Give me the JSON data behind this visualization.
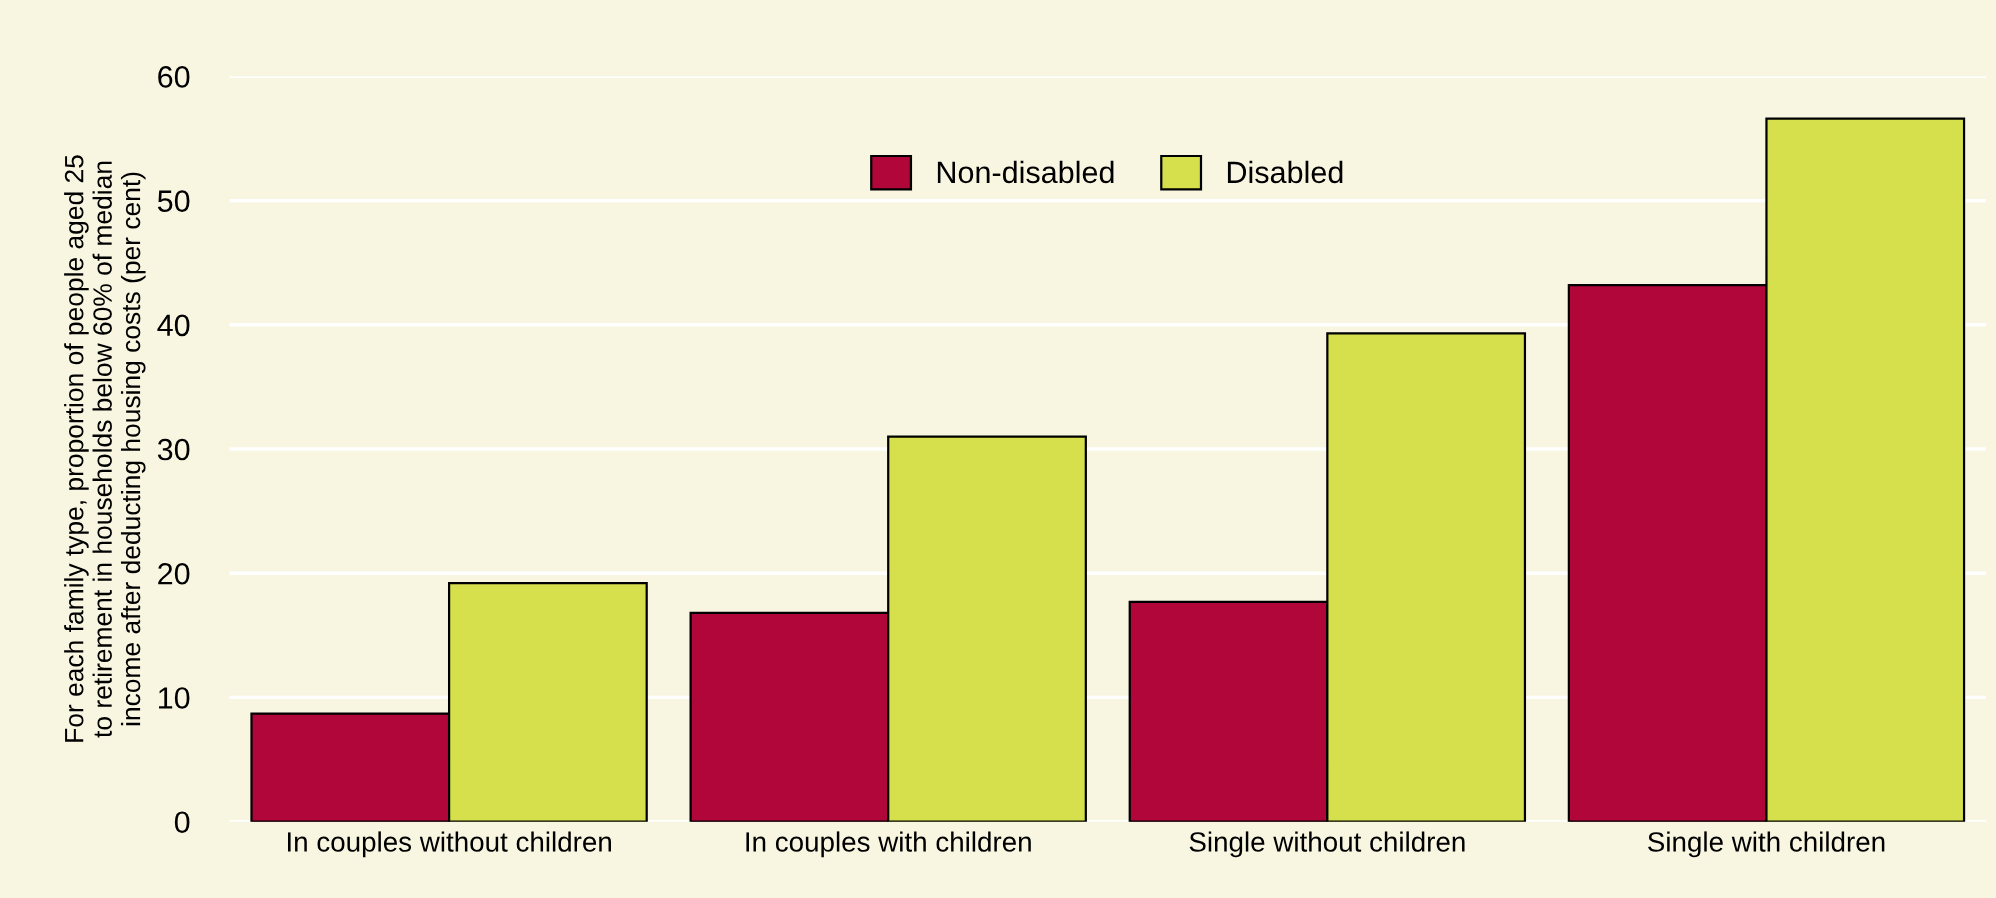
{
  "chart_data": {
    "type": "bar",
    "ylabel": "For each family type, proportion of people aged 25 to retirement in households below 60% of median income after deducting housing costs (per cent)",
    "categories": [
      "In couples without children",
      "In couples with children",
      "Single without children",
      "Single with children"
    ],
    "series": [
      {
        "name": "Non-disabled",
        "color": "#b0063a",
        "values": [
          8.7,
          16.8,
          17.7,
          43.2
        ]
      },
      {
        "name": "Disabled",
        "color": "#d5e04c",
        "values": [
          19.2,
          31.0,
          39.3,
          56.6
        ]
      }
    ],
    "ylim": [
      0,
      60
    ],
    "yticks": [
      0,
      10,
      20,
      30,
      40,
      50,
      60
    ],
    "grid": "y",
    "legend": "top"
  }
}
